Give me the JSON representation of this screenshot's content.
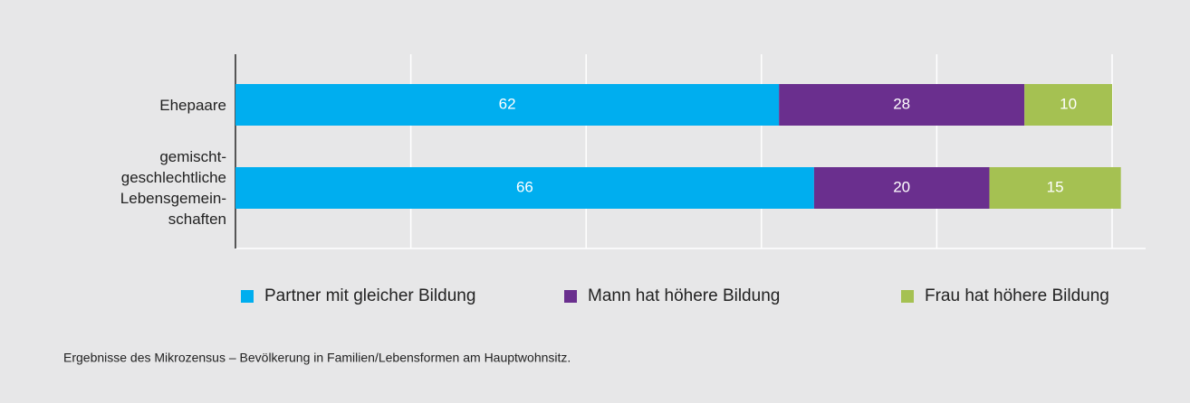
{
  "chart_data": {
    "type": "stacked_barh",
    "categories": [
      "Ehepaare",
      "gemischt-\ngeschlechtliche\nLebensgemein-\nschaften"
    ],
    "series": [
      {
        "name": "Partner mit gleicher Bildung",
        "color": "#00aeef",
        "values": [
          62,
          66
        ]
      },
      {
        "name": "Mann hat höhere Bildung",
        "color": "#6a2f8e",
        "values": [
          28,
          20
        ]
      },
      {
        "name": "Frau hat höhere Bildung",
        "color": "#a5c152",
        "values": [
          10,
          15
        ]
      }
    ],
    "xlim": [
      0,
      100
    ],
    "xticks": [
      0,
      20,
      40,
      60,
      80,
      100
    ],
    "grid": true,
    "legend": "bottom",
    "note": "Ergebnisse des Mikrozensus – Bevölkerung in Familien/Lebensformen am Hauptwohnsitz."
  }
}
